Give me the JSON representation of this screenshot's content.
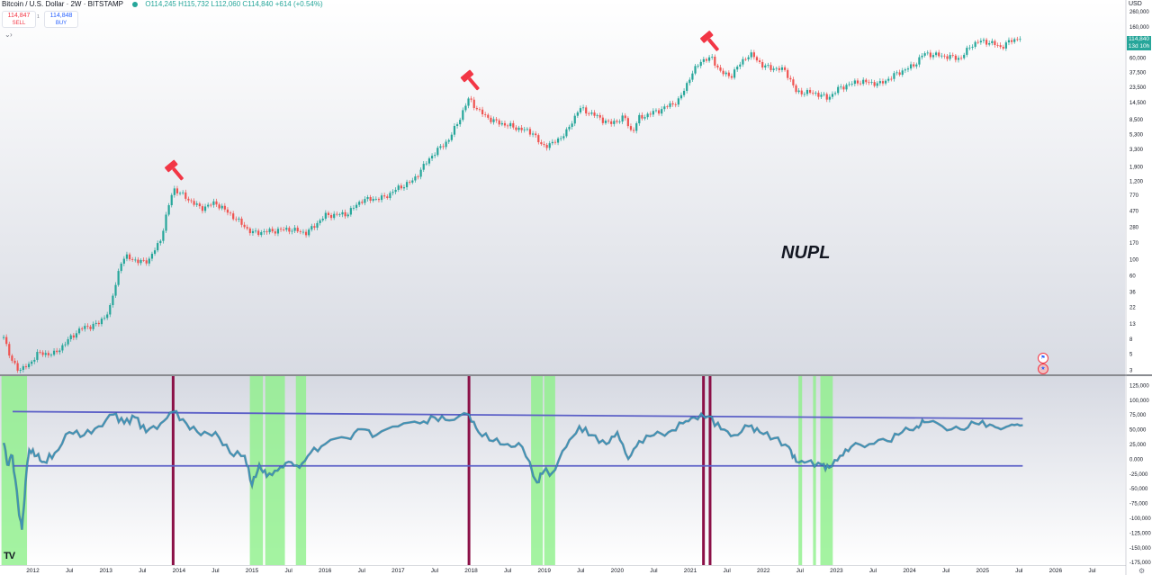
{
  "header": {
    "symbol": "Bitcoin / U.S. Dollar · 2W · BITSTAMP",
    "ohlc": "O114,245 H115,732 L112,060 C114,840 +614 (+0.54%)"
  },
  "trade": {
    "sell_price": "114,847",
    "sell_label": "SELL",
    "buy_price": "114,848",
    "buy_label": "BUY",
    "spread": "1"
  },
  "annotation": "NUPL",
  "currency": "USD",
  "last_price": {
    "value": "114,840",
    "countdown": "13d 10h"
  },
  "colors": {
    "up": "#26a69a",
    "down": "#ef5350",
    "nupl_line": "#3d93b8",
    "channel_line": "#5b5fc7",
    "green_zone": "#8df08a",
    "top_marker": "#8b1047",
    "hammer": "#f23645"
  },
  "icons": [
    "tradingview-logo",
    "hammer-icon",
    "settings-icon",
    "flag-icon"
  ],
  "chart_data": [
    {
      "type": "candlestick",
      "title": "Bitcoin / U.S. Dollar · 2W · BITSTAMP",
      "y_scale": "log",
      "ylim": [
        2.6,
        330000
      ],
      "y_ticks": [
        3,
        5,
        8,
        13,
        22,
        36,
        60,
        100,
        170,
        280,
        470,
        770,
        1200,
        1900,
        3300,
        5300,
        8500,
        14500,
        23500,
        37500,
        60000,
        100000,
        160000,
        260000
      ],
      "y_tick_labels": [
        "3",
        "5",
        "8",
        "13",
        "22",
        "36",
        "60",
        "100",
        "170",
        "280",
        "470",
        "770",
        "1,200",
        "1,900",
        "3,300",
        "5,300",
        "8,500",
        "14,500",
        "23,500",
        "37,500",
        "60,000",
        "100,000",
        "160,000",
        "260,000"
      ],
      "xlim": [
        2011.55,
        2026.95
      ],
      "x_tick_labels": [
        {
          "label": "2012",
          "x": 2012.0
        },
        {
          "label": "Jul",
          "x": 2012.5
        },
        {
          "label": "2013",
          "x": 2013.0
        },
        {
          "label": "Jul",
          "x": 2013.5
        },
        {
          "label": "2014",
          "x": 2014.0
        },
        {
          "label": "Jul",
          "x": 2014.5
        },
        {
          "label": "2015",
          "x": 2015.0
        },
        {
          "label": "Jul",
          "x": 2015.5
        },
        {
          "label": "2016",
          "x": 2016.0
        },
        {
          "label": "Jul",
          "x": 2016.5
        },
        {
          "label": "2017",
          "x": 2017.0
        },
        {
          "label": "Jul",
          "x": 2017.5
        },
        {
          "label": "2018",
          "x": 2018.0
        },
        {
          "label": "Jul",
          "x": 2018.5
        },
        {
          "label": "2019",
          "x": 2019.0
        },
        {
          "label": "Jul",
          "x": 2019.5
        },
        {
          "label": "2020",
          "x": 2020.0
        },
        {
          "label": "Jul",
          "x": 2020.5
        },
        {
          "label": "2021",
          "x": 2021.0
        },
        {
          "label": "Jul",
          "x": 2021.5
        },
        {
          "label": "2022",
          "x": 2022.0
        },
        {
          "label": "Jul",
          "x": 2022.5
        },
        {
          "label": "2023",
          "x": 2023.0
        },
        {
          "label": "Jul",
          "x": 2023.5
        },
        {
          "label": "2024",
          "x": 2024.0
        },
        {
          "label": "Jul",
          "x": 2024.5
        },
        {
          "label": "2025",
          "x": 2025.0
        },
        {
          "label": "Jul",
          "x": 2025.5
        },
        {
          "label": "2026",
          "x": 2026.0
        },
        {
          "label": "Jul",
          "x": 2026.5
        }
      ],
      "price_path": [
        [
          2011.6,
          9
        ],
        [
          2011.7,
          4
        ],
        [
          2011.82,
          3
        ],
        [
          2011.95,
          3.5
        ],
        [
          2012.05,
          5
        ],
        [
          2012.3,
          5
        ],
        [
          2012.5,
          8
        ],
        [
          2012.65,
          11
        ],
        [
          2012.9,
          13
        ],
        [
          2013.05,
          20
        ],
        [
          2013.2,
          90
        ],
        [
          2013.3,
          110
        ],
        [
          2013.45,
          90
        ],
        [
          2013.6,
          100
        ],
        [
          2013.75,
          190
        ],
        [
          2013.92,
          950
        ],
        [
          2014.1,
          700
        ],
        [
          2014.3,
          500
        ],
        [
          2014.5,
          600
        ],
        [
          2014.75,
          380
        ],
        [
          2015.0,
          230
        ],
        [
          2015.2,
          240
        ],
        [
          2015.5,
          260
        ],
        [
          2015.75,
          230
        ],
        [
          2016.0,
          400
        ],
        [
          2016.3,
          420
        ],
        [
          2016.5,
          650
        ],
        [
          2016.8,
          700
        ],
        [
          2017.0,
          950
        ],
        [
          2017.2,
          1200
        ],
        [
          2017.45,
          2600
        ],
        [
          2017.7,
          4500
        ],
        [
          2017.85,
          9000
        ],
        [
          2017.97,
          16500
        ],
        [
          2018.1,
          11000
        ],
        [
          2018.3,
          8000
        ],
        [
          2018.6,
          6500
        ],
        [
          2018.85,
          5500
        ],
        [
          2018.95,
          3700
        ],
        [
          2019.1,
          3800
        ],
        [
          2019.3,
          5500
        ],
        [
          2019.48,
          12000
        ],
        [
          2019.7,
          9500
        ],
        [
          2019.9,
          7300
        ],
        [
          2020.1,
          9000
        ],
        [
          2020.2,
          5500
        ],
        [
          2020.3,
          8800
        ],
        [
          2020.6,
          11500
        ],
        [
          2020.85,
          15500
        ],
        [
          2021.0,
          33000
        ],
        [
          2021.15,
          55000
        ],
        [
          2021.3,
          58000
        ],
        [
          2021.42,
          37000
        ],
        [
          2021.55,
          33000
        ],
        [
          2021.75,
          60000
        ],
        [
          2021.85,
          65000
        ],
        [
          2022.0,
          45000
        ],
        [
          2022.3,
          40000
        ],
        [
          2022.45,
          20000
        ],
        [
          2022.7,
          19500
        ],
        [
          2022.88,
          16500
        ],
        [
          2023.05,
          23000
        ],
        [
          2023.3,
          28000
        ],
        [
          2023.6,
          26000
        ],
        [
          2023.85,
          37000
        ],
        [
          2024.05,
          46000
        ],
        [
          2024.2,
          68000
        ],
        [
          2024.5,
          62000
        ],
        [
          2024.7,
          58000
        ],
        [
          2024.85,
          90000
        ],
        [
          2024.97,
          100000
        ],
        [
          2025.1,
          97000
        ],
        [
          2025.25,
          83000
        ],
        [
          2025.4,
          103000
        ],
        [
          2025.55,
          115000
        ]
      ],
      "sell_signals": [
        2013.92,
        2017.97,
        2021.25
      ]
    },
    {
      "type": "line",
      "title": "NUPL",
      "ylim": [
        -180000,
        140000
      ],
      "y_ticks": [
        125000,
        100000,
        75000,
        50000,
        25000,
        0,
        -25000,
        -50000,
        -75000,
        -100000,
        -125000,
        -150000,
        -175000
      ],
      "y_tick_labels": [
        "125,000",
        "100,000",
        "75,000",
        "50,000",
        "25,000",
        "0.000",
        "-25,000",
        "-50,000",
        "-75,000",
        "-100,000",
        "-125,000",
        "-150,000",
        "-175,000"
      ],
      "series": [
        {
          "values": [
            [
              2011.6,
              27000
            ],
            [
              2011.65,
              -10000
            ],
            [
              2011.72,
              5000
            ],
            [
              2011.8,
              -80000
            ],
            [
              2011.85,
              -120000
            ],
            [
              2011.9,
              -40000
            ],
            [
              2011.95,
              15000
            ],
            [
              2012.05,
              5000
            ],
            [
              2012.15,
              -5000
            ],
            [
              2012.3,
              10000
            ],
            [
              2012.5,
              45000
            ],
            [
              2012.7,
              40000
            ],
            [
              2012.9,
              55000
            ],
            [
              2013.1,
              75000
            ],
            [
              2013.25,
              60000
            ],
            [
              2013.4,
              70000
            ],
            [
              2013.55,
              45000
            ],
            [
              2013.75,
              60000
            ],
            [
              2013.92,
              80000
            ],
            [
              2014.1,
              60000
            ],
            [
              2014.3,
              40000
            ],
            [
              2014.5,
              45000
            ],
            [
              2014.7,
              10000
            ],
            [
              2014.9,
              5000
            ],
            [
              2015.0,
              -45000
            ],
            [
              2015.1,
              -10000
            ],
            [
              2015.2,
              -30000
            ],
            [
              2015.35,
              -20000
            ],
            [
              2015.5,
              -5000
            ],
            [
              2015.65,
              -15000
            ],
            [
              2015.8,
              10000
            ],
            [
              2016.0,
              25000
            ],
            [
              2016.3,
              35000
            ],
            [
              2016.5,
              50000
            ],
            [
              2016.7,
              40000
            ],
            [
              2017.0,
              55000
            ],
            [
              2017.3,
              60000
            ],
            [
              2017.5,
              70000
            ],
            [
              2017.7,
              65000
            ],
            [
              2017.97,
              75000
            ],
            [
              2018.1,
              45000
            ],
            [
              2018.3,
              30000
            ],
            [
              2018.5,
              25000
            ],
            [
              2018.7,
              20000
            ],
            [
              2018.9,
              -40000
            ],
            [
              2019.0,
              -20000
            ],
            [
              2019.1,
              -25000
            ],
            [
              2019.3,
              20000
            ],
            [
              2019.48,
              55000
            ],
            [
              2019.65,
              40000
            ],
            [
              2019.85,
              25000
            ],
            [
              2020.0,
              45000
            ],
            [
              2020.15,
              0
            ],
            [
              2020.3,
              30000
            ],
            [
              2020.5,
              40000
            ],
            [
              2020.7,
              45000
            ],
            [
              2020.9,
              60000
            ],
            [
              2021.05,
              70000
            ],
            [
              2021.25,
              72000
            ],
            [
              2021.42,
              50000
            ],
            [
              2021.6,
              40000
            ],
            [
              2021.8,
              55000
            ],
            [
              2021.95,
              45000
            ],
            [
              2022.15,
              35000
            ],
            [
              2022.35,
              20000
            ],
            [
              2022.45,
              -5000
            ],
            [
              2022.6,
              -5000
            ],
            [
              2022.8,
              -10000
            ],
            [
              2022.9,
              -15000
            ],
            [
              2023.05,
              5000
            ],
            [
              2023.2,
              20000
            ],
            [
              2023.45,
              25000
            ],
            [
              2023.7,
              30000
            ],
            [
              2023.9,
              45000
            ],
            [
              2024.1,
              55000
            ],
            [
              2024.2,
              62000
            ],
            [
              2024.45,
              55000
            ],
            [
              2024.7,
              50000
            ],
            [
              2024.9,
              60000
            ],
            [
              2025.1,
              58000
            ],
            [
              2025.25,
              50000
            ],
            [
              2025.4,
              58000
            ],
            [
              2025.55,
              57000
            ]
          ]
        }
      ],
      "channel_lines": [
        {
          "from": [
            2011.55,
            80000
          ],
          "to": [
            2025.55,
            68000
          ]
        },
        {
          "from": [
            2011.55,
            -12000
          ],
          "to": [
            2025.55,
            -12000
          ]
        }
      ],
      "green_zones": [
        [
          2011.57,
          2011.92
        ],
        [
          2014.97,
          2015.15
        ],
        [
          2015.18,
          2015.45
        ],
        [
          2015.6,
          2015.74
        ],
        [
          2018.82,
          2018.98
        ],
        [
          2019.0,
          2019.15
        ],
        [
          2022.48,
          2022.53
        ],
        [
          2022.68,
          2022.72
        ],
        [
          2022.78,
          2022.95
        ]
      ],
      "top_markers": [
        2013.92,
        2017.97,
        2021.18,
        2021.27
      ]
    }
  ]
}
